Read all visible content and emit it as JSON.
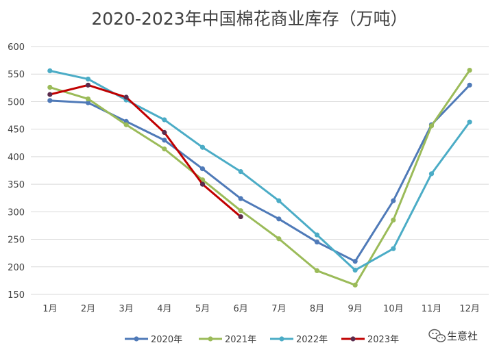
{
  "chart_data": {
    "type": "line",
    "title": "2020-2023年中国棉花商业库存（万吨）",
    "xlabel": "",
    "ylabel": "",
    "categories": [
      "1月",
      "2月",
      "3月",
      "4月",
      "5月",
      "6月",
      "7月",
      "8月",
      "9月",
      "10月",
      "11月",
      "12月"
    ],
    "ylim": [
      150,
      600
    ],
    "yticks": [
      150,
      200,
      250,
      300,
      350,
      400,
      450,
      500,
      550,
      600
    ],
    "grid": true,
    "legend_position": "bottom",
    "series": [
      {
        "name": "2020年",
        "color": "#4f7ab8",
        "values": [
          502,
          498,
          464,
          430,
          378,
          324,
          287,
          245,
          210,
          320,
          458,
          530
        ]
      },
      {
        "name": "2021年",
        "color": "#9bbb59",
        "values": [
          526,
          505,
          458,
          414,
          358,
          302,
          251,
          193,
          167,
          285,
          456,
          557
        ]
      },
      {
        "name": "2022年",
        "color": "#4bacc6",
        "values": [
          556,
          541,
          503,
          467,
          417,
          373,
          320,
          258,
          194,
          233,
          369,
          463
        ]
      },
      {
        "name": "2023年",
        "color": "#c00000",
        "marker_color": "#5b2c4d",
        "values": [
          513,
          530,
          508,
          444,
          350,
          291,
          null,
          null,
          null,
          null,
          null,
          null
        ]
      }
    ]
  },
  "watermark": {
    "text": "生意社",
    "icon": "wechat-icon"
  }
}
